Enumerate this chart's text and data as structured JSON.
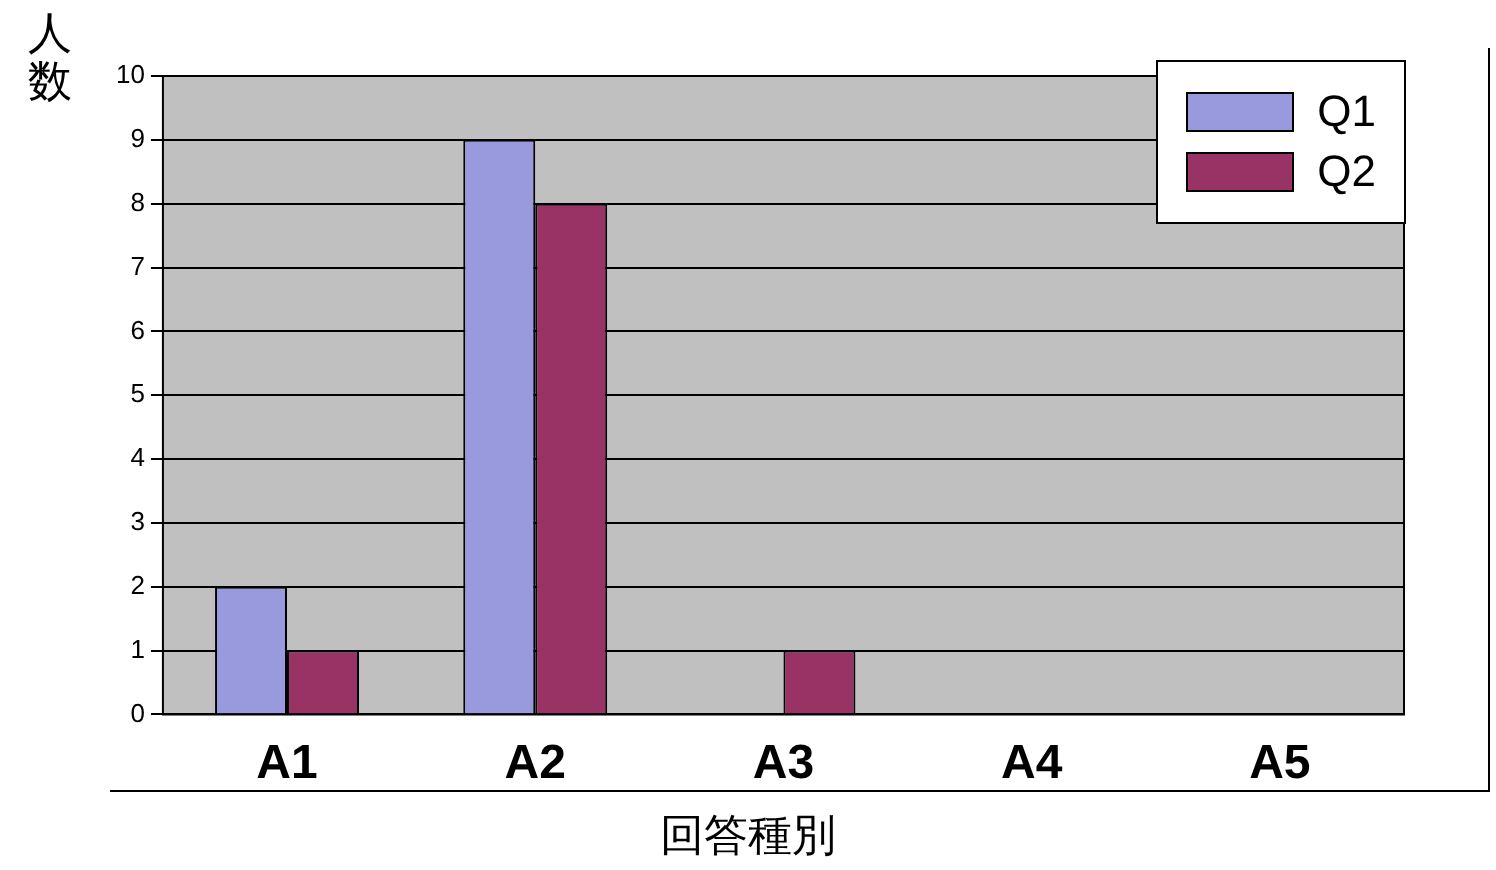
{
  "chart_data": {
    "type": "bar",
    "xlabel": "回答種別",
    "ylabel": "人数",
    "categories": [
      "A1",
      "A2",
      "A3",
      "A4",
      "A5"
    ],
    "series": [
      {
        "name": "Q1",
        "color": "#9999dd",
        "values": [
          2,
          9,
          0,
          0,
          0
        ]
      },
      {
        "name": "Q2",
        "color": "#993366",
        "values": [
          1,
          8,
          1,
          0,
          0
        ]
      }
    ],
    "ylim": [
      0,
      10
    ],
    "yticks": [
      0,
      1,
      2,
      3,
      4,
      5,
      6,
      7,
      8,
      9,
      10
    ],
    "grid": "y",
    "legend": "top right"
  }
}
